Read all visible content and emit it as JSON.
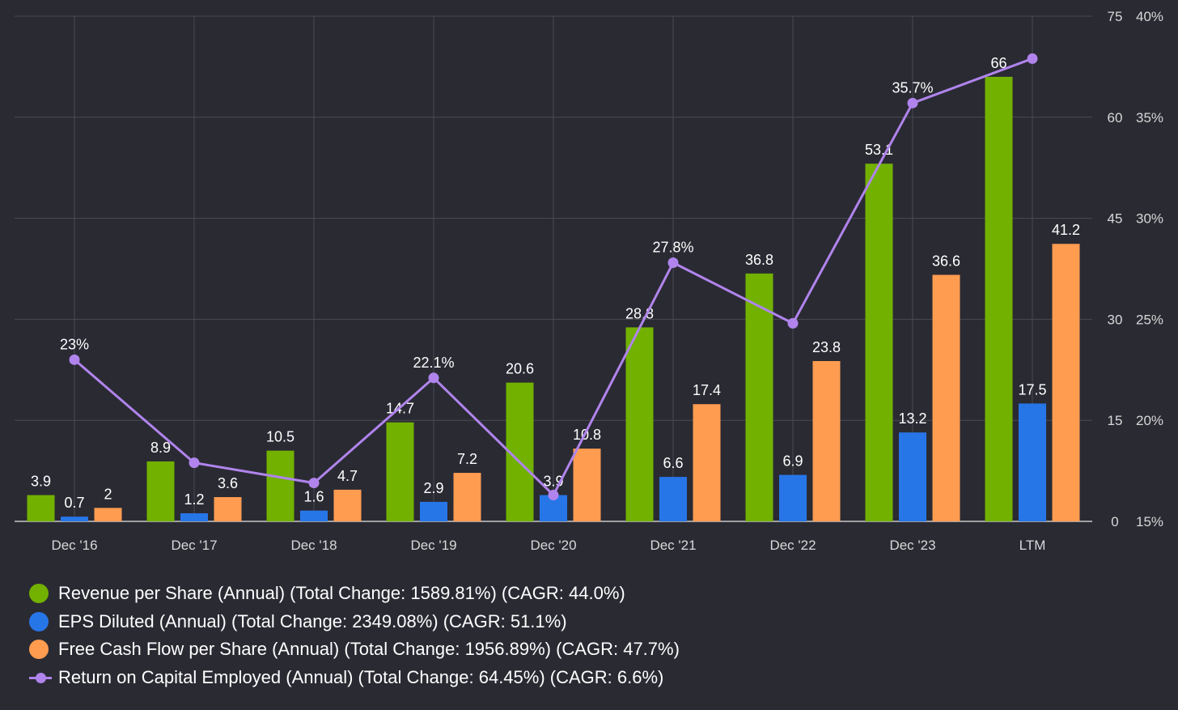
{
  "chart_data": {
    "type": "bar",
    "categories": [
      "Dec '16",
      "Dec '17",
      "Dec '18",
      "Dec '19",
      "Dec '20",
      "Dec '21",
      "Dec '22",
      "Dec '23",
      "LTM"
    ],
    "series": [
      {
        "name": "Revenue per Share (Annual) (Total Change: 1589.81%) (CAGR: 44.0%)",
        "type": "bar",
        "axis": "left",
        "color": "#72b100",
        "values": [
          3.9,
          8.9,
          10.5,
          14.7,
          20.6,
          28.8,
          36.8,
          53.1,
          66
        ],
        "labels": [
          "3.9",
          "8.9",
          "10.5",
          "14.7",
          "20.6",
          "28.8",
          "36.8",
          "53.1",
          "66"
        ]
      },
      {
        "name": "EPS Diluted (Annual) (Total Change: 2349.08%) (CAGR: 51.1%)",
        "type": "bar",
        "axis": "left",
        "color": "#2776e8",
        "values": [
          0.7,
          1.2,
          1.6,
          2.9,
          3.9,
          6.6,
          6.9,
          13.2,
          17.5
        ],
        "labels": [
          "0.7",
          "1.2",
          "1.6",
          "2.9",
          "3.9",
          "6.6",
          "6.9",
          "13.2",
          "17.5"
        ]
      },
      {
        "name": "Free Cash Flow per Share (Annual) (Total Change: 1956.89%) (CAGR: 47.7%)",
        "type": "bar",
        "axis": "left",
        "color": "#ff9c50",
        "values": [
          2,
          3.6,
          4.7,
          7.2,
          10.8,
          17.4,
          23.8,
          36.6,
          41.2
        ],
        "labels": [
          "2",
          "3.6",
          "4.7",
          "7.2",
          "10.8",
          "17.4",
          "23.8",
          "36.6",
          "41.2"
        ]
      },
      {
        "name": "Return on Capital Employed (Annual) (Total Change: 64.45%) (CAGR: 6.6%)",
        "type": "line",
        "axis": "right",
        "color": "#b084ec",
        "values": [
          23,
          17.9,
          16.9,
          22.1,
          16.3,
          27.8,
          24.8,
          35.7,
          37.9
        ],
        "labels": [
          "23%",
          "",
          "",
          "22.1%",
          "",
          "27.8%",
          "",
          "35.7%",
          ""
        ]
      }
    ],
    "y_left": {
      "ylim": [
        0,
        75
      ],
      "ticks": [
        "0",
        "15",
        "30",
        "45",
        "60",
        "75"
      ]
    },
    "y_right": {
      "ylim": [
        15,
        40
      ],
      "ticks": [
        "15%",
        "20%",
        "25%",
        "30%",
        "35%",
        "40%"
      ]
    },
    "grid": true,
    "legend_position": "bottom-left",
    "title": "",
    "xlabel": "",
    "ylabel": ""
  },
  "colors": {
    "background": "#2a2a33",
    "grid": "#4a4a55",
    "axis_text": "#d8d8d8",
    "label_text": "#ffffff"
  }
}
